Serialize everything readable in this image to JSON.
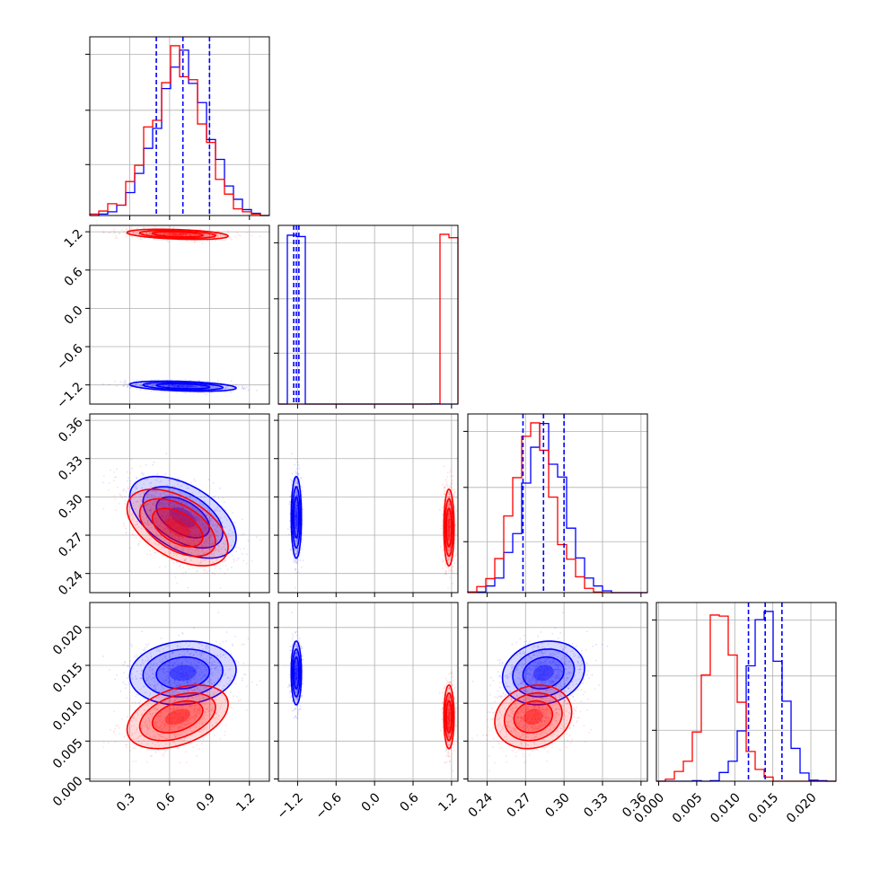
{
  "chart_data": {
    "type": "corner",
    "grid": true,
    "series": [
      {
        "name": "",
        "color": "#0000ff",
        "params": [
          {
            "mean": 0.7,
            "sd": 0.2
          },
          {
            "mean": -1.22,
            "sd": 0.04
          },
          {
            "mean": 0.284,
            "sd": 0.016
          },
          {
            "mean": 0.014,
            "sd": 0.0021
          }
        ],
        "correlations": {
          "0-1": -0.35,
          "0-2": -0.5,
          "0-3": 0.1,
          "1-2": 0.0,
          "1-3": 0.0,
          "2-3": 0.15
        }
      },
      {
        "name": "",
        "color": "#ff0000",
        "params": [
          {
            "mean": 0.66,
            "sd": 0.19
          },
          {
            "mean": 1.16,
            "sd": 0.04
          },
          {
            "mean": 0.276,
            "sd": 0.015
          },
          {
            "mean": 0.0082,
            "sd": 0.0021
          }
        ],
        "correlations": {
          "0-1": -0.35,
          "0-2": -0.5,
          "0-3": 0.4,
          "1-2": 0.0,
          "1-3": 0.0,
          "2-3": 0.15
        }
      }
    ],
    "quantile_lines": {
      "color": "#0000ff",
      "values": [
        [
          0.5,
          0.7,
          0.9
        ],
        [
          -1.26,
          -1.22,
          -1.18
        ],
        [
          0.268,
          0.284,
          0.3
        ],
        [
          0.0118,
          0.014,
          0.0162
        ]
      ]
    },
    "axes": [
      {
        "range": [
          0.0,
          1.35
        ],
        "ticks": [
          0.3,
          0.6,
          0.9,
          1.2
        ],
        "tick_labels": [
          "0.3",
          "0.6",
          "0.9",
          "1.2"
        ]
      },
      {
        "range": [
          -1.5,
          1.3
        ],
        "ticks": [
          -1.2,
          -0.6,
          0.0,
          0.6,
          1.2
        ],
        "tick_labels": [
          "−1.2",
          "−0.6",
          "0.0",
          "0.6",
          "1.2"
        ]
      },
      {
        "range": [
          0.225,
          0.365
        ],
        "ticks": [
          0.24,
          0.27,
          0.3,
          0.33,
          0.36
        ],
        "tick_labels": [
          "0.24",
          "0.27",
          "0.30",
          "0.33",
          "0.36"
        ]
      },
      {
        "range": [
          -0.0003,
          0.0233
        ],
        "ticks": [
          0.0,
          0.005,
          0.01,
          0.015,
          0.02
        ],
        "tick_labels": [
          "0.000",
          "0.005",
          "0.010",
          "0.015",
          "0.020"
        ]
      }
    ]
  }
}
